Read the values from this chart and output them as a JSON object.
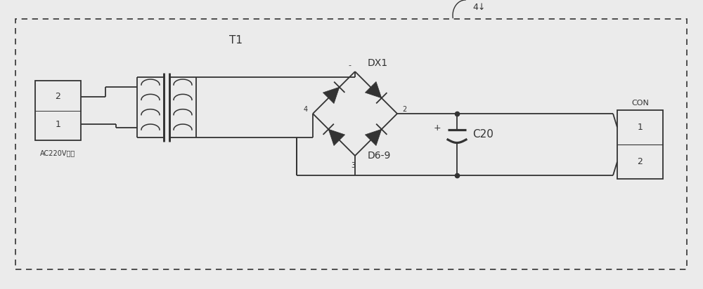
{
  "label_4": "4↓",
  "label_T1": "T1",
  "label_DX1": "DX1",
  "label_D69": "D6-9",
  "label_C20": "C20",
  "label_CON": "CON",
  "label_AC": "AC220V输入",
  "label_con1": "1",
  "label_con2": "2",
  "label_plug1": "2",
  "label_plug2": "1",
  "label_minus": "-",
  "label_plus": "+",
  "label_node2": "2",
  "label_node4": "4",
  "label_node3": "3",
  "lc": "#333333"
}
